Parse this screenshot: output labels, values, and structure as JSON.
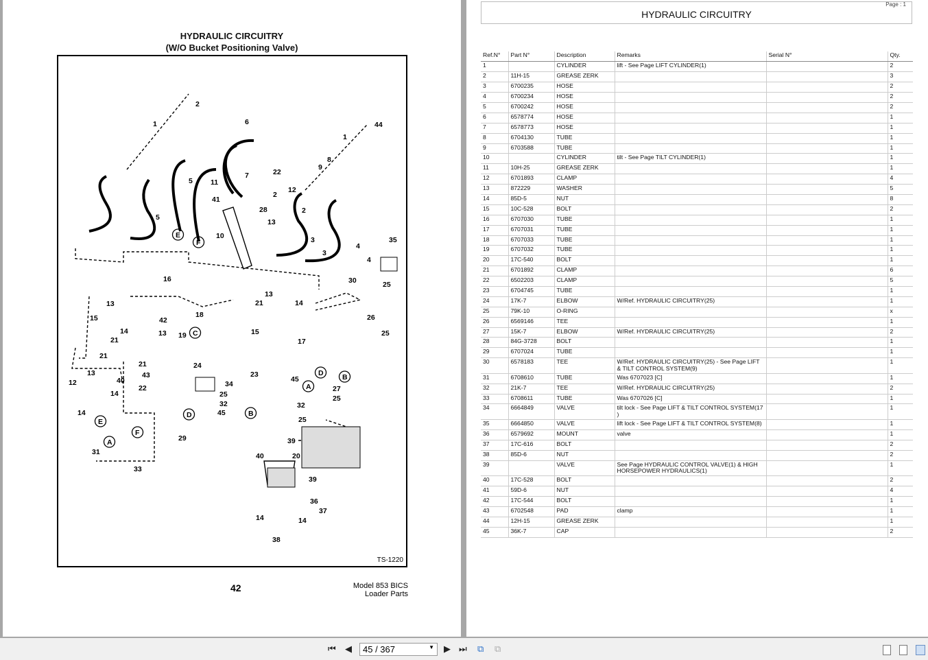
{
  "left_page": {
    "title": "HYDRAULIC CIRCUITRY",
    "subtitle": "(W/O Bucket Positioning Valve)",
    "figure_id": "TS-1220",
    "page_number": "42",
    "model_line1": "Model 853 BICS",
    "model_line2": "Loader Parts",
    "callouts": [
      "2",
      "1",
      "6",
      "44",
      "1",
      "8",
      "9",
      "22",
      "7",
      "12",
      "2",
      "3",
      "4",
      "5",
      "5",
      "11",
      "41",
      "28",
      "13",
      "2",
      "3",
      "4",
      "10",
      "35",
      "E",
      "F",
      "16",
      "30",
      "25",
      "13",
      "14",
      "21",
      "18",
      "15",
      "13",
      "42",
      "21",
      "13",
      "15",
      "14",
      "21",
      "19",
      "C",
      "26",
      "17",
      "25",
      "24",
      "34",
      "25",
      "32",
      "45",
      "23",
      "B",
      "A",
      "D",
      "B",
      "27",
      "25",
      "45",
      "32",
      "25",
      "13",
      "40",
      "12",
      "14",
      "22",
      "21",
      "43",
      "14",
      "E",
      "A",
      "F",
      "31",
      "33",
      "29",
      "D",
      "39",
      "20",
      "40",
      "39",
      "36",
      "37",
      "14",
      "14",
      "38"
    ]
  },
  "right_page": {
    "title": "HYDRAULIC CIRCUITRY",
    "page_label": "Page : 1",
    "columns": [
      "Ref.N°",
      "Part N°",
      "Description",
      "Remarks",
      "Serial N°",
      "Qty."
    ],
    "rows": [
      [
        "1",
        "",
        "CYLINDER",
        "lift - See Page LIFT CYLINDER(1)",
        "",
        "2"
      ],
      [
        "2",
        "11H-15",
        "GREASE ZERK",
        "",
        "",
        "3"
      ],
      [
        "3",
        "6700235",
        "HOSE",
        "",
        "",
        "2"
      ],
      [
        "4",
        "6700234",
        "HOSE",
        "",
        "",
        "2"
      ],
      [
        "5",
        "6700242",
        "HOSE",
        "",
        "",
        "2"
      ],
      [
        "6",
        "6578774",
        "HOSE",
        "",
        "",
        "1"
      ],
      [
        "7",
        "6578773",
        "HOSE",
        "",
        "",
        "1"
      ],
      [
        "8",
        "6704130",
        "TUBE",
        "",
        "",
        "1"
      ],
      [
        "9",
        "6703588",
        "TUBE",
        "",
        "",
        "1"
      ],
      [
        "10",
        "",
        "CYLINDER",
        "tilt - See Page TILT CYLINDER(1)",
        "",
        "1"
      ],
      [
        "11",
        "10H-25",
        "GREASE ZERK",
        "",
        "",
        "1"
      ],
      [
        "12",
        "6701893",
        "CLAMP",
        "",
        "",
        "4"
      ],
      [
        "13",
        "872229",
        "WASHER",
        "",
        "",
        "5"
      ],
      [
        "14",
        "85D-5",
        "NUT",
        "",
        "",
        "8"
      ],
      [
        "15",
        "10C-528",
        "BOLT",
        "",
        "",
        "2"
      ],
      [
        "16",
        "6707030",
        "TUBE",
        "",
        "",
        "1"
      ],
      [
        "17",
        "6707031",
        "TUBE",
        "",
        "",
        "1"
      ],
      [
        "18",
        "6707033",
        "TUBE",
        "",
        "",
        "1"
      ],
      [
        "19",
        "6707032",
        "TUBE",
        "",
        "",
        "1"
      ],
      [
        "20",
        "17C-540",
        "BOLT",
        "",
        "",
        "1"
      ],
      [
        "21",
        "6701892",
        "CLAMP",
        "",
        "",
        "6"
      ],
      [
        "22",
        "6502203",
        "CLAMP",
        "",
        "",
        "5"
      ],
      [
        "23",
        "6704745",
        "TUBE",
        "",
        "",
        "1"
      ],
      [
        "24",
        "17K-7",
        "ELBOW",
        "W/Ref. HYDRAULIC CIRCUITRY(25)",
        "",
        "1"
      ],
      [
        "25",
        "79K-10",
        "O-RING",
        "",
        "",
        "x"
      ],
      [
        "26",
        "6569146",
        "TEE",
        "",
        "",
        "1"
      ],
      [
        "27",
        "15K-7",
        "ELBOW",
        "W/Ref. HYDRAULIC CIRCUITRY(25)",
        "",
        "2"
      ],
      [
        "28",
        "84G-3728",
        "BOLT",
        "",
        "",
        "1"
      ],
      [
        "29",
        "6707024",
        "TUBE",
        "",
        "",
        "1"
      ],
      [
        "30",
        "6578183",
        "TEE",
        "W/Ref. HYDRAULIC CIRCUITRY(25) - See Page LIFT & TILT CONTROL SYSTEM(9)",
        "",
        "1"
      ],
      [
        "31",
        "6708610",
        "TUBE",
        "Was 6707023 [C]",
        "",
        "1"
      ],
      [
        "32",
        "21K-7",
        "TEE",
        "W/Ref. HYDRAULIC CIRCUITRY(25)",
        "",
        "2"
      ],
      [
        "33",
        "6708611",
        "TUBE",
        "Was 6707026 [C]",
        "",
        "1"
      ],
      [
        "34",
        "6664849",
        "VALVE",
        "tilt lock - See Page LIFT & TILT CONTROL SYSTEM(17 )",
        "",
        "1"
      ],
      [
        "35",
        "6664850",
        "VALVE",
        "lift lock - See Page LIFT & TILT CONTROL SYSTEM(8)",
        "",
        "1"
      ],
      [
        "36",
        "6579692",
        "MOUNT",
        "valve",
        "",
        "1"
      ],
      [
        "37",
        "17C-616",
        "BOLT",
        "",
        "",
        "2"
      ],
      [
        "38",
        "85D-6",
        "NUT",
        "",
        "",
        "2"
      ],
      [
        "39",
        "",
        "VALVE",
        "See Page HYDRAULIC CONTROL VALVE(1) & HIGH HORSEPOWER HYDRAULICS(1)",
        "",
        "1"
      ],
      [
        "40",
        "17C-528",
        "BOLT",
        "",
        "",
        "2"
      ],
      [
        "41",
        "59D-6",
        "NUT",
        "",
        "",
        "4"
      ],
      [
        "42",
        "17C-544",
        "BOLT",
        "",
        "",
        "1"
      ],
      [
        "43",
        "6702548",
        "PAD",
        "clamp",
        "",
        "1"
      ],
      [
        "44",
        "12H-15",
        "GREASE ZERK",
        "",
        "",
        "1"
      ],
      [
        "45",
        "36K-7",
        "CAP",
        "",
        "",
        "2"
      ]
    ]
  },
  "toolbar": {
    "page_indicator": "45 / 367",
    "icons": [
      "first-page-icon",
      "prev-page-icon",
      "next-page-icon",
      "last-page-icon",
      "prev-view-icon",
      "next-view-icon",
      "single-page-icon",
      "continuous-icon",
      "two-page-icon"
    ],
    "selected_view": "two-page"
  }
}
